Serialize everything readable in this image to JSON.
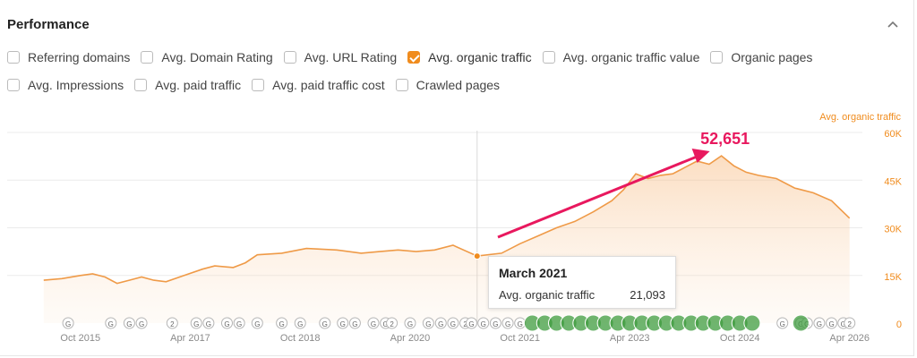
{
  "panel": {
    "title": "Performance"
  },
  "metrics": {
    "row1": [
      {
        "label": "Referring domains",
        "checked": false
      },
      {
        "label": "Avg. Domain Rating",
        "checked": false
      },
      {
        "label": "Avg. URL Rating",
        "checked": false
      },
      {
        "label": "Avg. organic traffic",
        "checked": true
      },
      {
        "label": "Avg. organic traffic value",
        "checked": false
      },
      {
        "label": "Organic pages",
        "checked": false
      }
    ],
    "row2": [
      {
        "label": "Avg. Impressions",
        "checked": false
      },
      {
        "label": "Avg. paid traffic",
        "checked": false
      },
      {
        "label": "Avg. paid traffic cost",
        "checked": false
      },
      {
        "label": "Crawled pages",
        "checked": false
      }
    ]
  },
  "colors": {
    "accent": "#f08c1e",
    "annotation": "#e8185e",
    "update_marker": "#3f9c3f"
  },
  "chart_data": {
    "type": "area",
    "series": [
      {
        "name": "Avg. organic traffic",
        "points": [
          [
            "2015-04",
            13500
          ],
          [
            "2015-07",
            14000
          ],
          [
            "2015-10",
            15000
          ],
          [
            "2015-12",
            15500
          ],
          [
            "2016-02",
            14500
          ],
          [
            "2016-04",
            12500
          ],
          [
            "2016-06",
            13500
          ],
          [
            "2016-08",
            14500
          ],
          [
            "2016-10",
            13500
          ],
          [
            "2016-12",
            13000
          ],
          [
            "2017-03",
            15000
          ],
          [
            "2017-06",
            17000
          ],
          [
            "2017-08",
            18000
          ],
          [
            "2017-11",
            17500
          ],
          [
            "2018-01",
            19000
          ],
          [
            "2018-03",
            21500
          ],
          [
            "2018-07",
            22000
          ],
          [
            "2018-11",
            23500
          ],
          [
            "2019-04",
            23000
          ],
          [
            "2019-08",
            22000
          ],
          [
            "2019-11",
            22500
          ],
          [
            "2020-02",
            23000
          ],
          [
            "2020-05",
            22500
          ],
          [
            "2020-08",
            23000
          ],
          [
            "2020-11",
            24500
          ],
          [
            "2021-03",
            21093
          ],
          [
            "2021-07",
            22000
          ],
          [
            "2021-10",
            25000
          ],
          [
            "2022-01",
            27500
          ],
          [
            "2022-04",
            30000
          ],
          [
            "2022-07",
            32000
          ],
          [
            "2022-10",
            35000
          ],
          [
            "2023-01",
            38500
          ],
          [
            "2023-03",
            42000
          ],
          [
            "2023-05",
            47000
          ],
          [
            "2023-07",
            45500
          ],
          [
            "2023-09",
            46500
          ],
          [
            "2023-11",
            47000
          ],
          [
            "2024-01",
            49000
          ],
          [
            "2024-03",
            51000
          ],
          [
            "2024-05",
            50000
          ],
          [
            "2024-07",
            52651
          ],
          [
            "2024-09",
            49500
          ],
          [
            "2024-11",
            47500
          ],
          [
            "2025-01",
            46500
          ],
          [
            "2025-04",
            45500
          ],
          [
            "2025-07",
            42500
          ],
          [
            "2025-10",
            41000
          ],
          [
            "2026-01",
            38500
          ],
          [
            "2026-04",
            33000
          ]
        ]
      }
    ],
    "y_axis_label": "Avg. organic traffic",
    "y_ticks": [
      "60K",
      "45K",
      "30K",
      "15K",
      "0"
    ],
    "x_ticks": [
      "Oct 2015",
      "Apr 2017",
      "Oct 2018",
      "Apr 2020",
      "Oct 2021",
      "Apr 2023",
      "Oct 2024",
      "Apr 2026"
    ],
    "ylim": [
      0,
      60000
    ],
    "annotation": {
      "text": "52,651",
      "x": "2024-07",
      "y": 52651
    },
    "tooltip": {
      "date": "March 2021",
      "label": "Avg. organic traffic",
      "value": "21,093"
    },
    "update_markers": {
      "grey_labels": [
        "G",
        "G",
        "G",
        "G",
        "2",
        "G",
        "G",
        "G",
        "G",
        "G",
        "G",
        "G",
        "G",
        "G",
        "G",
        "G",
        "G",
        "2",
        "G",
        "G",
        "G",
        "G",
        "2",
        "G",
        "G",
        "G",
        "G",
        "G",
        "G",
        "G",
        "G",
        "G",
        "G",
        "G",
        "2"
      ],
      "grey_dates": [
        "2015-08",
        "2016-03",
        "2016-06",
        "2016-08",
        "2017-01",
        "2017-05",
        "2017-07",
        "2017-10",
        "2017-12",
        "2018-03",
        "2018-07",
        "2018-10",
        "2019-02",
        "2019-05",
        "2019-07",
        "2019-10",
        "2019-12",
        "2020-01",
        "2020-04",
        "2020-07",
        "2020-09",
        "2020-11",
        "2021-01",
        "2021-02",
        "2021-04",
        "2021-06",
        "2021-08",
        "2021-10",
        "2025-05",
        "2025-08",
        "2025-09",
        "2025-11",
        "2026-01",
        "2026-03",
        "2026-04"
      ],
      "green_dates": [
        "2021-12",
        "2022-02",
        "2022-04",
        "2022-06",
        "2022-08",
        "2022-10",
        "2022-12",
        "2023-02",
        "2023-04",
        "2023-06",
        "2023-08",
        "2023-10",
        "2023-12",
        "2024-02",
        "2024-04",
        "2024-06",
        "2024-08",
        "2024-10",
        "2024-12",
        "2025-08"
      ]
    },
    "grid": true
  }
}
